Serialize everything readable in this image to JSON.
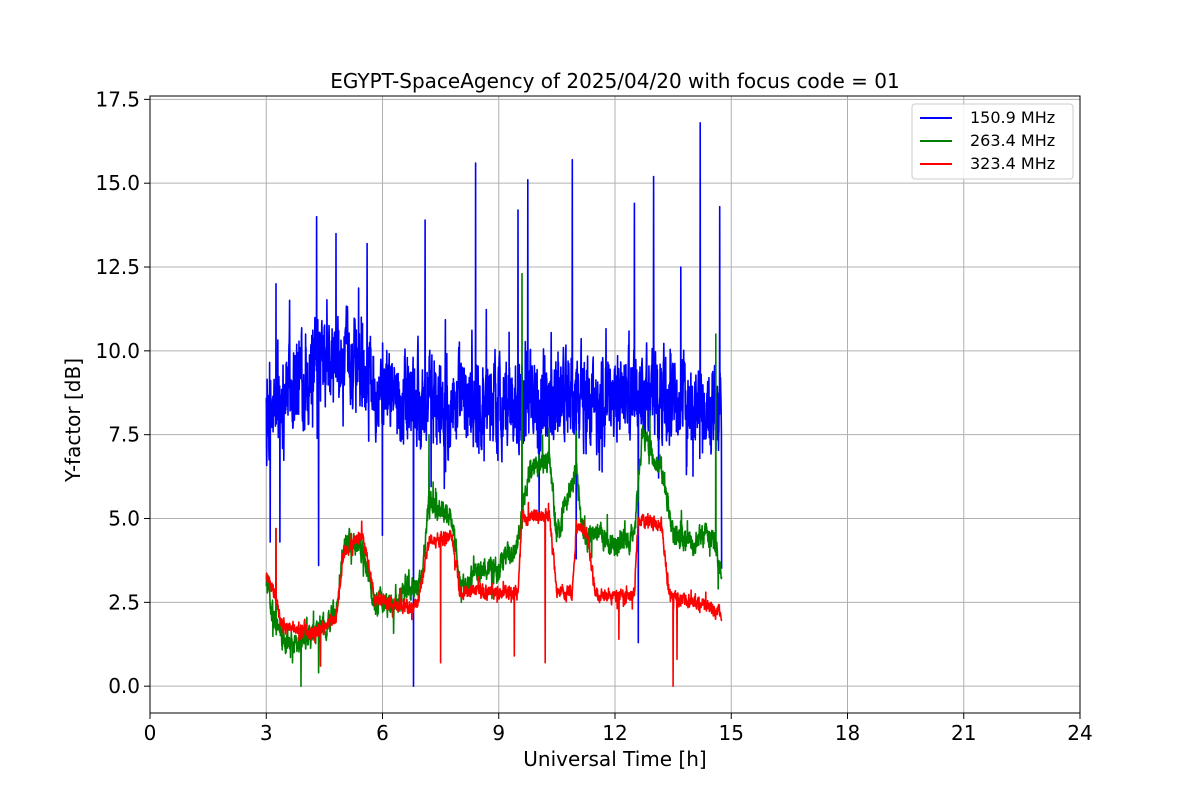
{
  "chart_data": {
    "type": "line",
    "title": "EGYPT-SpaceAgency of 2025/04/20 with focus code = 01",
    "xlabel": "Universal Time [h]",
    "ylabel": "Y-factor [dB]",
    "xlim": [
      0,
      24
    ],
    "ylim": [
      -0.8,
      17.6
    ],
    "xticks": [
      0,
      3,
      6,
      9,
      12,
      15,
      18,
      21,
      24
    ],
    "xtick_labels": [
      "0",
      "3",
      "6",
      "9",
      "12",
      "15",
      "18",
      "21",
      "24"
    ],
    "yticks": [
      0.0,
      2.5,
      5.0,
      7.5,
      10.0,
      12.5,
      15.0,
      17.5
    ],
    "ytick_labels": [
      "0.0",
      "2.5",
      "5.0",
      "7.5",
      "10.0",
      "12.5",
      "15.0",
      "17.5"
    ],
    "grid": true,
    "legend_position": "top-right",
    "x_range_of_data": [
      3.0,
      14.75
    ],
    "series": [
      {
        "name": "150.9 MHz",
        "color": "#0000ff",
        "baseline": [
          [
            3.0,
            7.5
          ],
          [
            3.5,
            9.0
          ],
          [
            4.5,
            9.5
          ],
          [
            5.5,
            9.5
          ],
          [
            6.5,
            8.5
          ],
          [
            7.5,
            8.5
          ],
          [
            8.5,
            8.5
          ],
          [
            9.5,
            8.5
          ],
          [
            10.5,
            8.8
          ],
          [
            11.5,
            8.5
          ],
          [
            12.5,
            8.8
          ],
          [
            13.5,
            8.5
          ],
          [
            14.75,
            8.0
          ]
        ],
        "spread": 2.3,
        "peaks": [
          [
            3.0,
            8.6
          ],
          [
            3.1,
            4.3
          ],
          [
            3.25,
            12.0
          ],
          [
            3.35,
            4.3
          ],
          [
            4.3,
            14.0
          ],
          [
            4.35,
            3.6
          ],
          [
            4.8,
            13.5
          ],
          [
            5.6,
            13.2
          ],
          [
            6.0,
            4.5
          ],
          [
            6.8,
            0.0
          ],
          [
            7.1,
            13.9
          ],
          [
            8.4,
            15.6
          ],
          [
            9.5,
            14.2
          ],
          [
            9.75,
            15.1
          ],
          [
            10.9,
            15.7
          ],
          [
            11.0,
            3.8
          ],
          [
            12.5,
            14.4
          ],
          [
            12.6,
            1.3
          ],
          [
            13.0,
            15.2
          ],
          [
            13.7,
            12.5
          ],
          [
            14.2,
            16.8
          ],
          [
            14.7,
            14.3
          ],
          [
            14.75,
            3.5
          ]
        ]
      },
      {
        "name": "263.4 MHz",
        "color": "#008000",
        "baseline": [
          [
            3.0,
            3.2
          ],
          [
            3.2,
            2.0
          ],
          [
            3.5,
            1.2
          ],
          [
            3.8,
            1.2
          ],
          [
            4.0,
            1.3
          ],
          [
            4.5,
            1.8
          ],
          [
            4.8,
            2.2
          ],
          [
            5.0,
            4.2
          ],
          [
            5.4,
            4.3
          ],
          [
            5.6,
            3.5
          ],
          [
            5.8,
            2.5
          ],
          [
            6.4,
            2.4
          ],
          [
            6.6,
            3.0
          ],
          [
            7.0,
            3.0
          ],
          [
            7.2,
            5.5
          ],
          [
            7.8,
            5.0
          ],
          [
            8.0,
            3.0
          ],
          [
            8.5,
            3.5
          ],
          [
            9.0,
            3.5
          ],
          [
            9.5,
            4.3
          ],
          [
            9.8,
            6.5
          ],
          [
            10.3,
            6.8
          ],
          [
            10.5,
            4.5
          ],
          [
            11.0,
            6.5
          ],
          [
            11.2,
            4.3
          ],
          [
            11.6,
            4.5
          ],
          [
            12.0,
            4.2
          ],
          [
            12.5,
            4.5
          ],
          [
            12.7,
            7.5
          ],
          [
            13.2,
            6.5
          ],
          [
            13.5,
            4.5
          ],
          [
            14.0,
            4.3
          ],
          [
            14.5,
            4.5
          ],
          [
            14.75,
            3.5
          ]
        ],
        "spread": 0.6,
        "peaks": [
          [
            3.25,
            4.7
          ],
          [
            3.9,
            0.0
          ],
          [
            4.35,
            0.4
          ],
          [
            7.2,
            7.5
          ],
          [
            9.6,
            12.3
          ],
          [
            10.3,
            7.7
          ],
          [
            11.0,
            7.6
          ],
          [
            12.9,
            8.2
          ],
          [
            14.6,
            10.5
          ]
        ]
      },
      {
        "name": "323.4 MHz",
        "color": "#ff0000",
        "baseline": [
          [
            3.0,
            3.3
          ],
          [
            3.2,
            2.8
          ],
          [
            3.4,
            1.8
          ],
          [
            3.8,
            1.7
          ],
          [
            4.2,
            1.6
          ],
          [
            4.8,
            2.0
          ],
          [
            5.0,
            4.0
          ],
          [
            5.5,
            4.5
          ],
          [
            5.8,
            2.6
          ],
          [
            6.4,
            2.4
          ],
          [
            6.9,
            2.4
          ],
          [
            7.2,
            4.3
          ],
          [
            7.8,
            4.5
          ],
          [
            8.0,
            2.8
          ],
          [
            8.6,
            2.8
          ],
          [
            9.5,
            2.8
          ],
          [
            9.6,
            5.0
          ],
          [
            10.3,
            5.1
          ],
          [
            10.5,
            2.8
          ],
          [
            10.9,
            2.8
          ],
          [
            11.0,
            4.8
          ],
          [
            11.3,
            4.5
          ],
          [
            11.5,
            2.7
          ],
          [
            12.5,
            2.7
          ],
          [
            12.6,
            5.0
          ],
          [
            13.2,
            4.8
          ],
          [
            13.4,
            2.7
          ],
          [
            14.0,
            2.5
          ],
          [
            14.75,
            2.2
          ]
        ],
        "spread": 0.35,
        "peaks": [
          [
            3.25,
            4.7
          ],
          [
            3.9,
            1.4
          ],
          [
            4.4,
            0.6
          ],
          [
            7.5,
            0.7
          ],
          [
            9.4,
            0.9
          ],
          [
            10.2,
            0.7
          ],
          [
            13.5,
            0.0
          ],
          [
            13.6,
            0.8
          ],
          [
            12.1,
            1.4
          ]
        ]
      }
    ]
  }
}
